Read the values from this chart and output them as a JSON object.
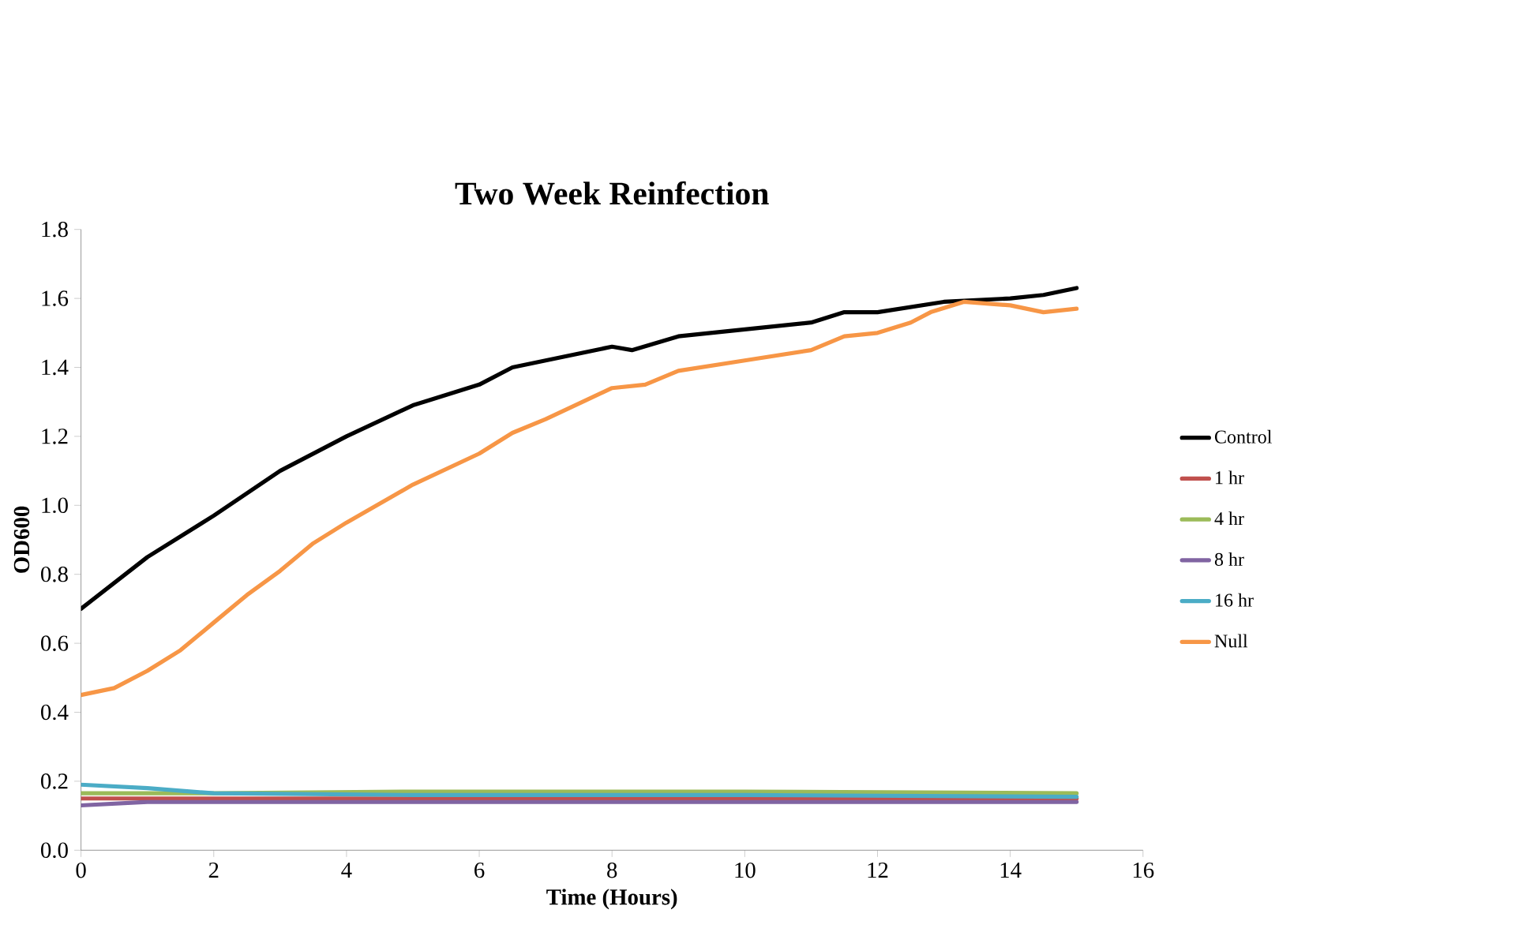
{
  "chart_data": {
    "type": "line",
    "title": "Two Week Reinfection",
    "xlabel": "Time (Hours)",
    "ylabel": "OD600",
    "xlim": [
      0,
      16
    ],
    "xticks": [
      0,
      2,
      4,
      6,
      8,
      10,
      12,
      14,
      16
    ],
    "ylim": [
      0,
      1.8
    ],
    "yticks": [
      {
        "value": 0,
        "label": "0.0"
      },
      {
        "value": 0.2,
        "label": "0.2"
      },
      {
        "value": 0.4,
        "label": "0.4"
      },
      {
        "value": 0.6,
        "label": "0.6"
      },
      {
        "value": 0.8,
        "label": "0.8"
      },
      {
        "value": 1.0,
        "label": "1.0"
      },
      {
        "value": 1.2,
        "label": "1.2"
      },
      {
        "value": 1.4,
        "label": "1.4"
      },
      {
        "value": 1.6,
        "label": "1.6"
      },
      {
        "value": 1.8,
        "label": "1.8"
      }
    ],
    "grid": false,
    "legend": "right",
    "line_style": "solid",
    "series": [
      {
        "name": "Control",
        "color": "#000000",
        "x": [
          0,
          1,
          2,
          3,
          4,
          5,
          6,
          6.5,
          7,
          8,
          8.3,
          9,
          10,
          11,
          11.5,
          12,
          13,
          14,
          14.5,
          15
        ],
        "values": [
          0.7,
          0.85,
          0.97,
          1.1,
          1.2,
          1.29,
          1.35,
          1.4,
          1.42,
          1.46,
          1.45,
          1.49,
          1.51,
          1.53,
          1.56,
          1.56,
          1.59,
          1.6,
          1.61,
          1.63
        ]
      },
      {
        "name": "1 hr",
        "color": "#c0504d",
        "x": [
          0,
          2,
          5,
          10,
          15
        ],
        "values": [
          0.15,
          0.15,
          0.15,
          0.15,
          0.15
        ]
      },
      {
        "name": "4 hr",
        "color": "#9bbb59",
        "x": [
          0,
          2,
          5,
          10,
          15
        ],
        "values": [
          0.165,
          0.165,
          0.17,
          0.17,
          0.165
        ]
      },
      {
        "name": "8 hr",
        "color": "#8064a2",
        "x": [
          0,
          1,
          2,
          5,
          10,
          15
        ],
        "values": [
          0.13,
          0.14,
          0.14,
          0.14,
          0.14,
          0.14
        ]
      },
      {
        "name": "16 hr",
        "color": "#4bacc6",
        "x": [
          0,
          1,
          2,
          5,
          10,
          15
        ],
        "values": [
          0.19,
          0.18,
          0.165,
          0.16,
          0.16,
          0.155
        ]
      },
      {
        "name": "Null",
        "color": "#f79646",
        "x": [
          0,
          0.5,
          1,
          1.5,
          2,
          2.5,
          3,
          3.5,
          4,
          5,
          6,
          6.5,
          7,
          8,
          8.5,
          9,
          10,
          11,
          11.5,
          12,
          12.5,
          12.8,
          13.3,
          14,
          14.5,
          15
        ],
        "values": [
          0.45,
          0.47,
          0.52,
          0.58,
          0.66,
          0.74,
          0.81,
          0.89,
          0.95,
          1.06,
          1.15,
          1.21,
          1.25,
          1.34,
          1.35,
          1.39,
          1.42,
          1.45,
          1.49,
          1.5,
          1.53,
          1.56,
          1.59,
          1.58,
          1.56,
          1.57
        ]
      }
    ]
  }
}
